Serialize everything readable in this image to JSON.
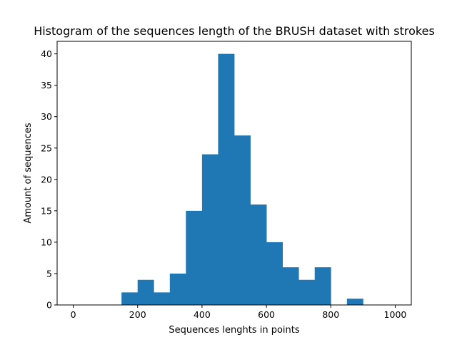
{
  "chart_data": {
    "type": "bar",
    "title": "Histogram of the sequences length of the BRUSH dataset with strokes",
    "xlabel": "Sequences lenghts in points",
    "ylabel": "Amount of sequences",
    "xlim": [
      -50,
      1050
    ],
    "ylim": [
      0,
      42
    ],
    "bins": [
      {
        "start": 0,
        "end": 50,
        "count": 0
      },
      {
        "start": 50,
        "end": 100,
        "count": 0
      },
      {
        "start": 100,
        "end": 150,
        "count": 0
      },
      {
        "start": 150,
        "end": 200,
        "count": 2
      },
      {
        "start": 200,
        "end": 250,
        "count": 4
      },
      {
        "start": 250,
        "end": 300,
        "count": 2
      },
      {
        "start": 300,
        "end": 350,
        "count": 5
      },
      {
        "start": 350,
        "end": 400,
        "count": 15
      },
      {
        "start": 400,
        "end": 450,
        "count": 24
      },
      {
        "start": 450,
        "end": 500,
        "count": 40
      },
      {
        "start": 500,
        "end": 550,
        "count": 27
      },
      {
        "start": 550,
        "end": 600,
        "count": 16
      },
      {
        "start": 600,
        "end": 650,
        "count": 10
      },
      {
        "start": 650,
        "end": 700,
        "count": 6
      },
      {
        "start": 700,
        "end": 750,
        "count": 4
      },
      {
        "start": 750,
        "end": 800,
        "count": 6
      },
      {
        "start": 800,
        "end": 850,
        "count": 0
      },
      {
        "start": 850,
        "end": 900,
        "count": 1
      },
      {
        "start": 900,
        "end": 950,
        "count": 0
      },
      {
        "start": 950,
        "end": 1000,
        "count": 0
      }
    ],
    "x_ticks": [
      0,
      200,
      400,
      600,
      800,
      1000
    ],
    "y_ticks": [
      0,
      5,
      10,
      15,
      20,
      25,
      30,
      35,
      40
    ],
    "bar_color": "#1f77b4",
    "grid": false
  }
}
